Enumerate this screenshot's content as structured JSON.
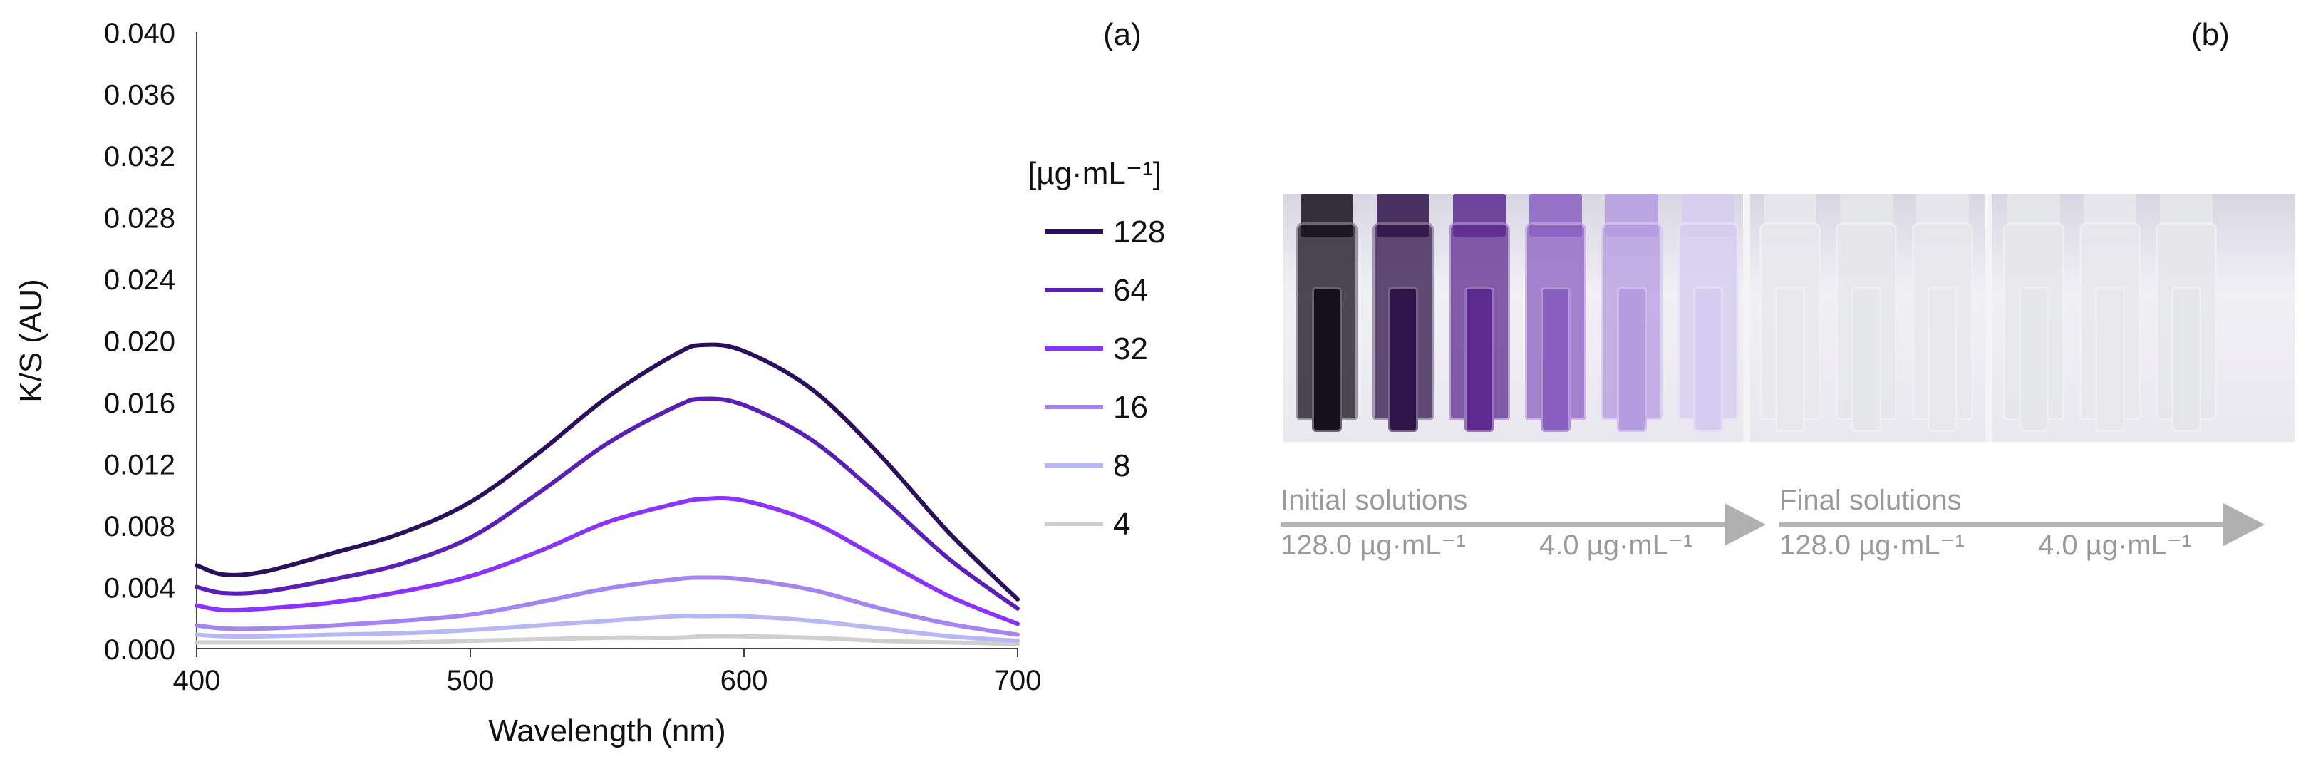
{
  "panel_a_label": "(a)",
  "panel_b_label": "(b)",
  "chart_data": {
    "type": "line",
    "title": "",
    "xlabel": "Wavelength (nm)",
    "ylabel": "K/S (AU)",
    "xlim": [
      400,
      700
    ],
    "ylim": [
      0,
      0.04
    ],
    "x_ticks": [
      "400",
      "500",
      "600",
      "700"
    ],
    "y_ticks": [
      "0.000",
      "0.004",
      "0.008",
      "0.012",
      "0.016",
      "0.020",
      "0.024",
      "0.028",
      "0.032",
      "0.036",
      "0.040"
    ],
    "legend_title": "[µg·mL⁻¹]",
    "legend_position": "right",
    "x": [
      400,
      410,
      425,
      450,
      475,
      500,
      525,
      550,
      575,
      585,
      600,
      625,
      650,
      675,
      700
    ],
    "series": [
      {
        "name": "128",
        "color": "#2b0f5c",
        "values": [
          0.0054,
          0.0048,
          0.005,
          0.0062,
          0.0075,
          0.0095,
          0.0127,
          0.0163,
          0.0191,
          0.0197,
          0.0193,
          0.0168,
          0.0125,
          0.0075,
          0.0032
        ]
      },
      {
        "name": "64",
        "color": "#5a20b5",
        "values": [
          0.004,
          0.0036,
          0.0037,
          0.0045,
          0.0055,
          0.0072,
          0.0101,
          0.0133,
          0.0157,
          0.0162,
          0.0158,
          0.0135,
          0.0098,
          0.0058,
          0.0026
        ]
      },
      {
        "name": "32",
        "color": "#8a33ff",
        "values": [
          0.0028,
          0.0025,
          0.0026,
          0.003,
          0.0037,
          0.0047,
          0.0063,
          0.0082,
          0.0094,
          0.0097,
          0.0096,
          0.0082,
          0.0058,
          0.0034,
          0.0016
        ]
      },
      {
        "name": "16",
        "color": "#a583f0",
        "values": [
          0.0015,
          0.0013,
          0.0013,
          0.0015,
          0.0018,
          0.0022,
          0.003,
          0.0039,
          0.0045,
          0.0046,
          0.0045,
          0.0038,
          0.0026,
          0.0016,
          0.0009
        ]
      },
      {
        "name": "8",
        "color": "#b7b7f5",
        "values": [
          0.0009,
          0.0008,
          0.0008,
          0.0009,
          0.001,
          0.0012,
          0.0015,
          0.0018,
          0.0021,
          0.0021,
          0.0021,
          0.0018,
          0.0013,
          0.0008,
          0.0005
        ]
      },
      {
        "name": "4",
        "color": "#cfcfcf",
        "values": [
          0.0004,
          0.0004,
          0.0004,
          0.0004,
          0.0004,
          0.0005,
          0.0006,
          0.0007,
          0.0007,
          0.0008,
          0.0008,
          0.0007,
          0.0005,
          0.0004,
          0.0003
        ]
      }
    ]
  },
  "photo": {
    "vials": [
      {
        "color": "#14101c"
      },
      {
        "color": "#2e1448"
      },
      {
        "color": "#5d2a8f"
      },
      {
        "color": "#8a5fc2"
      },
      {
        "color": "#b59be0"
      },
      {
        "color": "#d6ccef"
      },
      {
        "color": "#e8e8ec"
      },
      {
        "color": "#e6e7ea"
      },
      {
        "color": "#e8e8ec"
      },
      {
        "color": "#e6e7ea"
      },
      {
        "color": "#e8e8ec"
      },
      {
        "color": "#e6e7ea"
      }
    ]
  },
  "captions": {
    "initial": {
      "title": "Initial solutions",
      "high": "128.0 µg·mL⁻¹",
      "low": "4.0 µg·mL⁻¹"
    },
    "final": {
      "title": "Final solutions",
      "high": "128.0 µg·mL⁻¹",
      "low": "4.0 µg·mL⁻¹"
    }
  }
}
